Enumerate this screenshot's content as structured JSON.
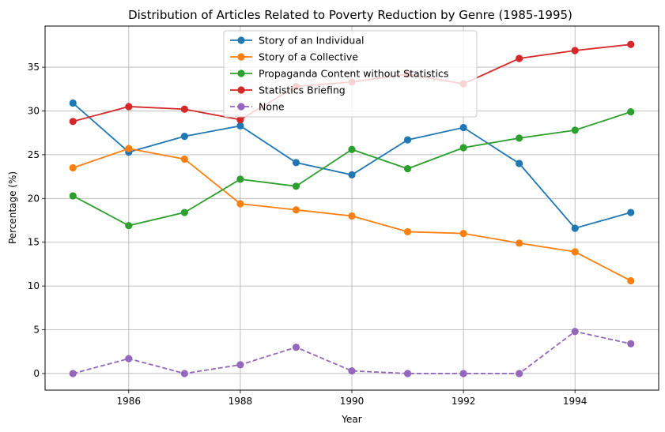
{
  "chart_data": {
    "type": "line",
    "title": "Distribution of Articles Related to Poverty Reduction by Genre (1985-1995)",
    "xlabel": "Year",
    "ylabel": "Percentage (%)",
    "x": [
      1985,
      1986,
      1987,
      1988,
      1989,
      1990,
      1991,
      1992,
      1993,
      1994,
      1995
    ],
    "xlim": [
      1984.5,
      1995.5
    ],
    "ylim": [
      -1.9,
      39.7
    ],
    "xticks": [
      1986,
      1988,
      1990,
      1992,
      1994
    ],
    "yticks": [
      0,
      5,
      10,
      15,
      20,
      25,
      30,
      35
    ],
    "grid": true,
    "legend_position": "top-center",
    "series": [
      {
        "name": "Story of an Individual",
        "color": "#1f77b4",
        "linestyle": "solid",
        "values": [
          30.9,
          25.3,
          27.1,
          28.3,
          24.1,
          22.7,
          26.7,
          28.1,
          24.0,
          16.6,
          18.4
        ]
      },
      {
        "name": "Story of a Collective",
        "color": "#ff7f0e",
        "linestyle": "solid",
        "values": [
          23.5,
          25.7,
          24.5,
          19.4,
          18.7,
          18.0,
          16.2,
          16.0,
          14.9,
          13.9,
          10.6
        ]
      },
      {
        "name": "Propaganda Content without Statistics",
        "color": "#2ca02c",
        "linestyle": "solid",
        "values": [
          20.3,
          16.9,
          18.4,
          22.2,
          21.4,
          25.6,
          23.4,
          25.8,
          26.9,
          27.8,
          29.9
        ]
      },
      {
        "name": "Statistics Briefing",
        "color": "#d62728",
        "linestyle": "solid",
        "values": [
          28.8,
          30.5,
          30.2,
          29.0,
          32.8,
          33.3,
          34.2,
          33.1,
          36.0,
          36.9,
          37.6
        ]
      },
      {
        "name": "None",
        "color": "#9467bd",
        "linestyle": "dashed",
        "values": [
          0.0,
          1.7,
          0.0,
          1.0,
          3.0,
          0.3,
          0.0,
          0.0,
          0.0,
          4.8,
          3.4
        ]
      }
    ]
  }
}
